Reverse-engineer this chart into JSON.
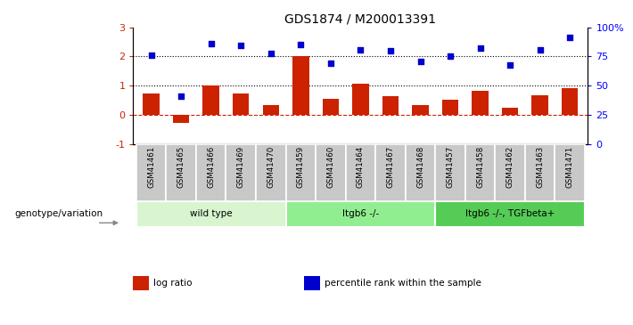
{
  "title": "GDS1874 / M200013391",
  "samples": [
    "GSM41461",
    "GSM41465",
    "GSM41466",
    "GSM41469",
    "GSM41470",
    "GSM41459",
    "GSM41460",
    "GSM41464",
    "GSM41467",
    "GSM41468",
    "GSM41457",
    "GSM41458",
    "GSM41462",
    "GSM41463",
    "GSM41471"
  ],
  "log_ratio": [
    0.72,
    -0.28,
    1.0,
    0.72,
    0.35,
    2.02,
    0.55,
    1.08,
    0.65,
    0.35,
    0.52,
    0.82,
    0.25,
    0.68,
    0.92
  ],
  "percentile_rank": [
    2.05,
    0.65,
    2.45,
    2.38,
    2.1,
    2.4,
    1.78,
    2.22,
    2.2,
    1.82,
    2.02,
    2.28,
    1.7,
    2.22,
    2.65
  ],
  "groups": [
    {
      "label": "wild type",
      "start": 0,
      "end": 5,
      "color": "#d8f5d0"
    },
    {
      "label": "Itgb6 -/-",
      "start": 5,
      "end": 10,
      "color": "#90ee90"
    },
    {
      "label": "Itgb6 -/-, TGFbeta+",
      "start": 10,
      "end": 15,
      "color": "#55cc55"
    }
  ],
  "ylim_left": [
    -1,
    3
  ],
  "ylim_right": [
    0,
    100
  ],
  "yticks_left": [
    -1,
    0,
    1,
    2,
    3
  ],
  "yticks_right": [
    0,
    25,
    50,
    75,
    100
  ],
  "ytick_labels_right": [
    "0",
    "25",
    "50",
    "75",
    "100%"
  ],
  "bar_color": "#cc2200",
  "dot_color": "#0000cc",
  "hline_y1": 2.0,
  "hline_y2": 1.0,
  "hline_color": "black",
  "zero_line_color": "#cc2200",
  "legend_items": [
    {
      "color": "#cc2200",
      "label": "log ratio"
    },
    {
      "color": "#0000cc",
      "label": "percentile rank within the sample"
    }
  ],
  "genotype_label": "genotype/variation",
  "left_color": "#cc2200",
  "bg_color": "white",
  "sample_box_color": "#c8c8c8"
}
